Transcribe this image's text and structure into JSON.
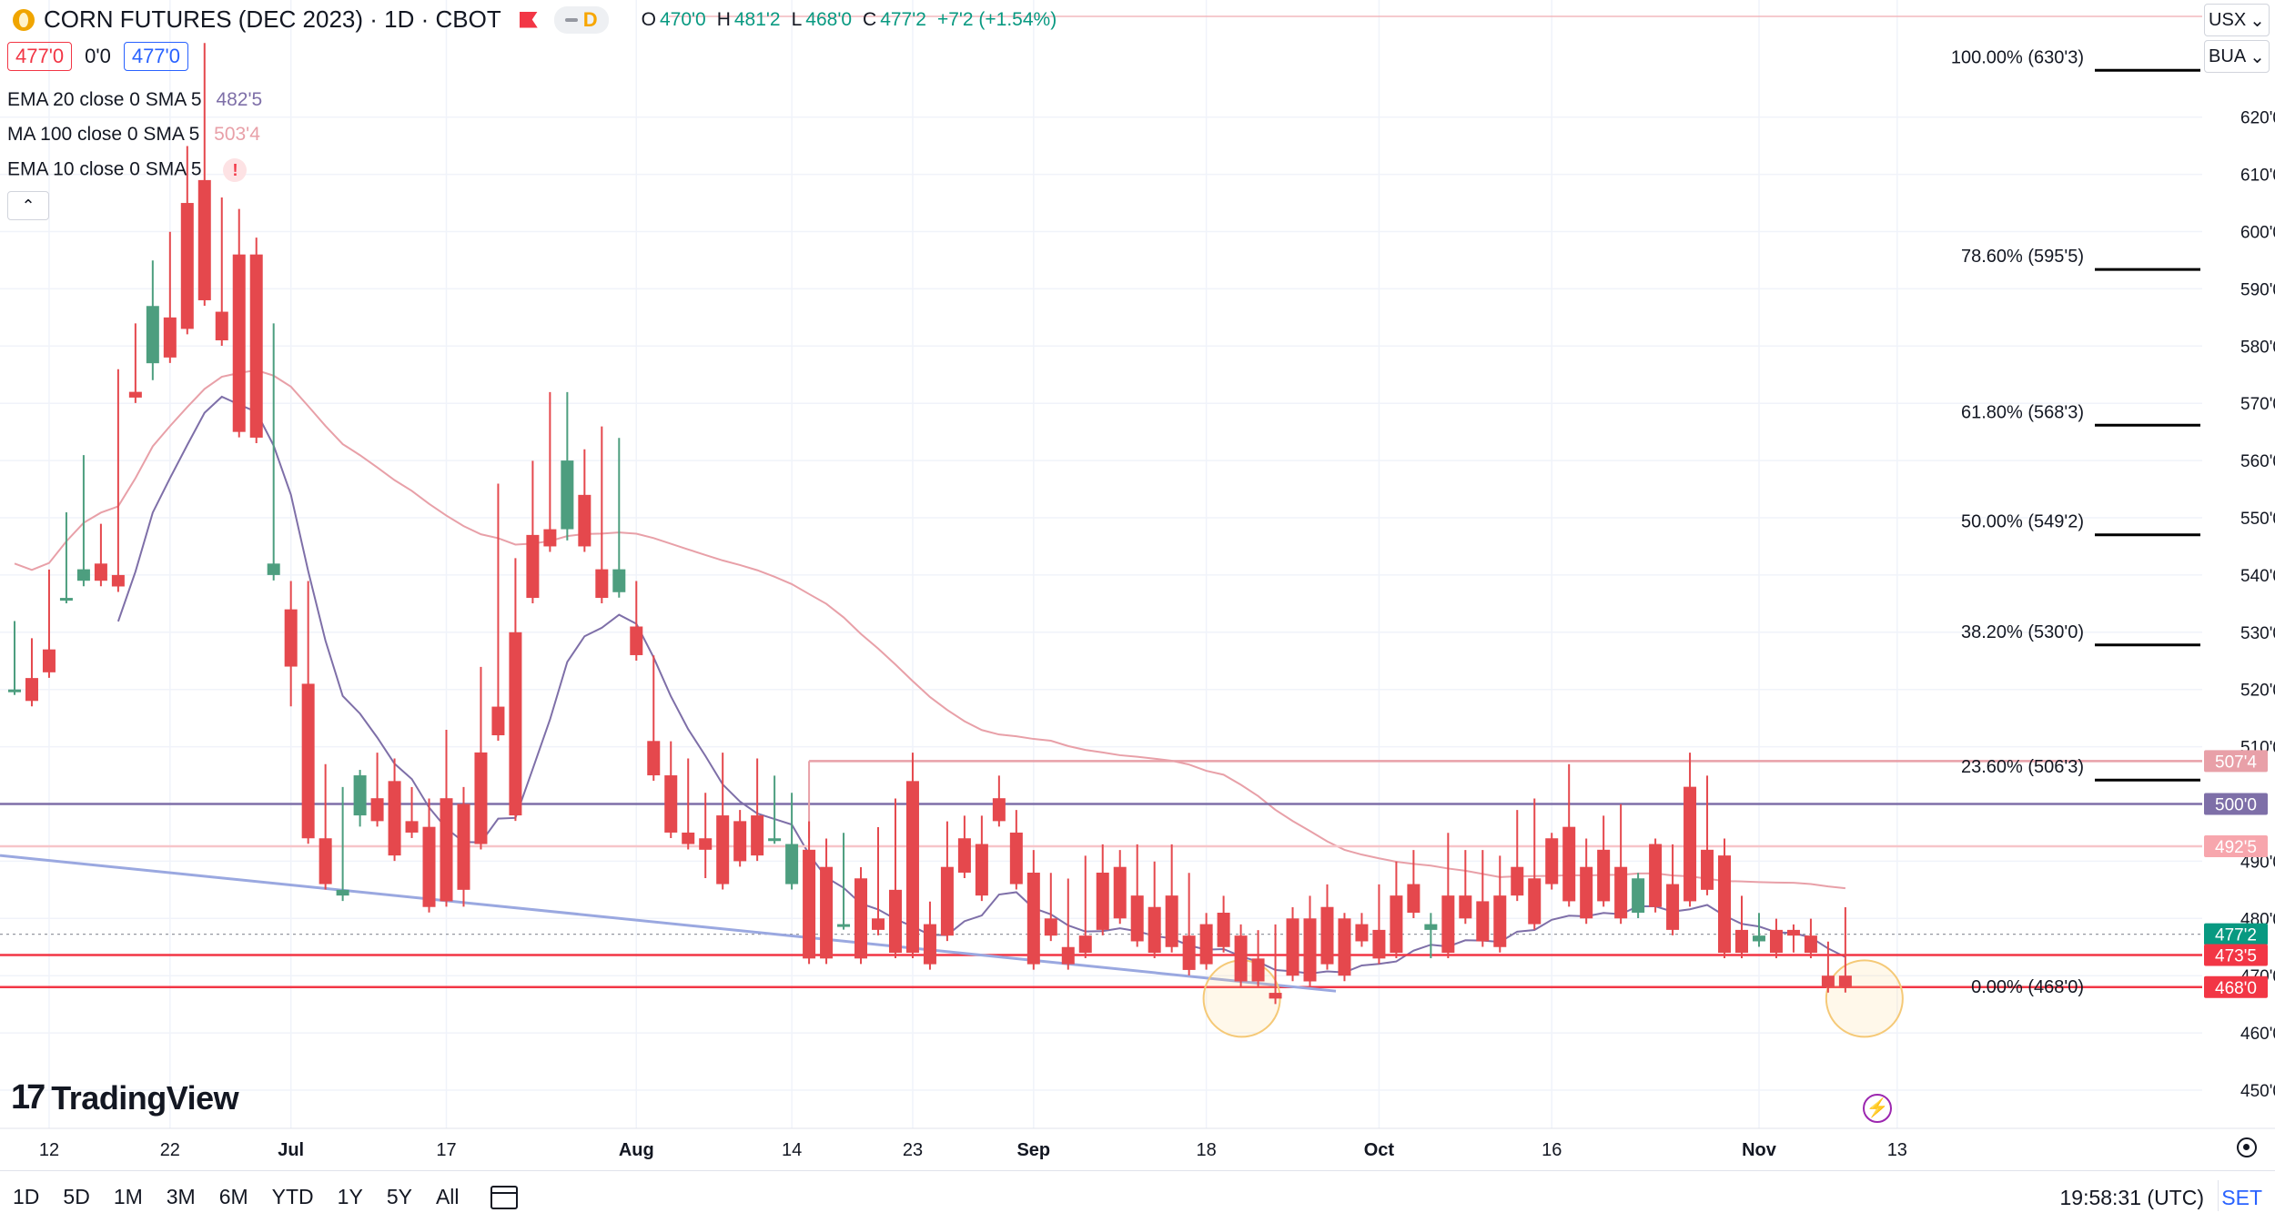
{
  "header": {
    "symbol_title": "CORN FUTURES (DEC 2023) · 1D · CBOT",
    "pill_letter": "D",
    "ohlc": [
      {
        "k": "O",
        "v": "470'0"
      },
      {
        "k": "H",
        "v": "481'2"
      },
      {
        "k": "L",
        "v": "468'0"
      },
      {
        "k": "C",
        "v": "477'2"
      },
      {
        "k": "",
        "v": "+7'2 (+1.54%)"
      }
    ],
    "sell_price": "477'0",
    "spread": "0'0",
    "buy_price": "477'0"
  },
  "indicators": [
    {
      "label": "EMA 20 close 0 SMA 5",
      "value": "482'5"
    },
    {
      "label": "MA 100 close 0 SMA 5",
      "value": "503'4"
    },
    {
      "label": "EMA 10 close 0 SMA 5",
      "value": ""
    }
  ],
  "collapse_icon": "chevron-up-icon",
  "right_selects": {
    "currency": "USX",
    "unit": "BUA"
  },
  "logo": "TradingView",
  "bottom": {
    "ranges": [
      "1D",
      "5D",
      "1M",
      "3M",
      "6M",
      "YTD",
      "1Y",
      "5Y",
      "All"
    ],
    "time": "19:58:31 (UTC)",
    "session": "SET"
  },
  "chart_data": {
    "type": "candlestick",
    "y_axis": {
      "min": 440,
      "max": 640,
      "ticks": [
        "450'0",
        "460'0",
        "470'0",
        "480'0",
        "490'0",
        "510'0",
        "520'0",
        "530'0",
        "540'0",
        "550'0",
        "560'0",
        "570'0",
        "580'0",
        "590'0",
        "600'0",
        "610'0",
        "620'0"
      ]
    },
    "x_ticks": [
      {
        "label": "12",
        "i": 2
      },
      {
        "label": "22",
        "i": 9
      },
      {
        "label": "Jul",
        "i": 16
      },
      {
        "label": "17",
        "i": 25
      },
      {
        "label": "Aug",
        "i": 36
      },
      {
        "label": "14",
        "i": 45
      },
      {
        "label": "23",
        "i": 52
      },
      {
        "label": "Sep",
        "i": 59
      },
      {
        "label": "18",
        "i": 69
      },
      {
        "label": "Oct",
        "i": 79
      },
      {
        "label": "16",
        "i": 89
      },
      {
        "label": "Nov",
        "i": 101
      },
      {
        "label": "13",
        "i": 109
      }
    ],
    "candles": [
      [
        520,
        531,
        528,
        520
      ],
      [
        522,
        528,
        524,
        518
      ],
      [
        527,
        540,
        538,
        523
      ],
      [
        536,
        550,
        540,
        536
      ],
      [
        539,
        560,
        551,
        541
      ],
      [
        542,
        545,
        548,
        539
      ],
      [
        540,
        575,
        553,
        538
      ],
      [
        572,
        583,
        573,
        571
      ],
      [
        577,
        594,
        575,
        587
      ],
      [
        585,
        589,
        599,
        578
      ],
      [
        605,
        614,
        592,
        583
      ],
      [
        609,
        632,
        615,
        588
      ],
      [
        586,
        605,
        598,
        581
      ],
      [
        596,
        603,
        590,
        565
      ],
      [
        596,
        598,
        591,
        564
      ],
      [
        540,
        577,
        583,
        542
      ],
      [
        534,
        538,
        518,
        524
      ],
      [
        521,
        538,
        510,
        494
      ],
      [
        494,
        506,
        493,
        486
      ],
      [
        484,
        491,
        502,
        485
      ],
      [
        498,
        504,
        497,
        505
      ],
      [
        501,
        508,
        499,
        497
      ],
      [
        504,
        507,
        494,
        491
      ],
      [
        497,
        502,
        496,
        495
      ],
      [
        496,
        500,
        499,
        482
      ],
      [
        501,
        512,
        499,
        483
      ],
      [
        500,
        502,
        483,
        485
      ],
      [
        509,
        523,
        505,
        493
      ],
      [
        517,
        555,
        532,
        512
      ],
      [
        530,
        542,
        508,
        498
      ],
      [
        547,
        559,
        549,
        536
      ],
      [
        548,
        571,
        547,
        545
      ],
      [
        548,
        571,
        547,
        560
      ],
      [
        554,
        557,
        561,
        545
      ],
      [
        541,
        552,
        565,
        536
      ],
      [
        537,
        549,
        563,
        541
      ],
      [
        531,
        538,
        530,
        526
      ],
      [
        511,
        525,
        517,
        505
      ],
      [
        505,
        510,
        501,
        495
      ],
      [
        495,
        507,
        497,
        493
      ],
      [
        494,
        501,
        488,
        492
      ],
      [
        498,
        508,
        499,
        486
      ],
      [
        497,
        498,
        497,
        490
      ],
      [
        498,
        507,
        496,
        491
      ],
      [
        494,
        504,
        496,
        494
      ],
      [
        486,
        501,
        497,
        493
      ],
      [
        492,
        496,
        493,
        473
      ],
      [
        489,
        493,
        479,
        473
      ],
      [
        479,
        482,
        494,
        479
      ],
      [
        487,
        488,
        478,
        473
      ],
      [
        480,
        495,
        485,
        478
      ],
      [
        485,
        500,
        489,
        474
      ],
      [
        504,
        508,
        504,
        474
      ],
      [
        479,
        482,
        479,
        472
      ],
      [
        489,
        495,
        496,
        477
      ],
      [
        494,
        497,
        491,
        488
      ],
      [
        493,
        496,
        497,
        484
      ],
      [
        501,
        504,
        498,
        497
      ],
      [
        495,
        498,
        489,
        486
      ],
      [
        488,
        491,
        488,
        472
      ],
      [
        480,
        487,
        486,
        477
      ],
      [
        475,
        486,
        480,
        472
      ],
      [
        477,
        490,
        480,
        474
      ],
      [
        488,
        492,
        488,
        478
      ],
      [
        489,
        491,
        489,
        480
      ],
      [
        484,
        492,
        492,
        476
      ],
      [
        482,
        485,
        489,
        474
      ],
      [
        484,
        492,
        488,
        475
      ],
      [
        477,
        487,
        484,
        471
      ],
      [
        479,
        480,
        474,
        472
      ],
      [
        481,
        483,
        479,
        475
      ],
      [
        477,
        478,
        478,
        469
      ],
      [
        473,
        477,
        474,
        469
      ],
      [
        467,
        471,
        478,
        466
      ],
      [
        480,
        481,
        479,
        470
      ],
      [
        480,
        483,
        475,
        469
      ],
      [
        482,
        484,
        485,
        472
      ],
      [
        480,
        480,
        475,
        470
      ],
      [
        479,
        480,
        480,
        476
      ],
      [
        478,
        485,
        482,
        473
      ],
      [
        484,
        488,
        489,
        474
      ],
      [
        486,
        490,
        491,
        481
      ],
      [
        478,
        480,
        474,
        479
      ],
      [
        484,
        490,
        494,
        474
      ],
      [
        484,
        489,
        491,
        480
      ],
      [
        483,
        490,
        491,
        476
      ],
      [
        484,
        486,
        490,
        475
      ],
      [
        489,
        498,
        489,
        484
      ],
      [
        487,
        500,
        486,
        479
      ],
      [
        494,
        494,
        492,
        486
      ],
      [
        496,
        506,
        484,
        483
      ],
      [
        489,
        493,
        488,
        480
      ],
      [
        492,
        497,
        495,
        483
      ],
      [
        489,
        499,
        496,
        480
      ],
      [
        481,
        482,
        483,
        487
      ],
      [
        493,
        490,
        493,
        482
      ],
      [
        486,
        492,
        486,
        478
      ],
      [
        503,
        508,
        506,
        483
      ],
      [
        492,
        504,
        491,
        485
      ],
      [
        491,
        493,
        484,
        474
      ],
      [
        478,
        482,
        483,
        474
      ],
      [
        476,
        480,
        476,
        477
      ],
      [
        478,
        479,
        478,
        474
      ],
      [
        478,
        475,
        476,
        477
      ],
      [
        477,
        479,
        476,
        474
      ],
      [
        470,
        473,
        475,
        468
      ],
      [
        470,
        481,
        477,
        468
      ]
    ],
    "series": [
      {
        "name": "EMA 20 close 0 SMA 5",
        "color": "#7e6fa8"
      },
      {
        "name": "MA 100 close 0 SMA 5",
        "color": "#e8a0a8"
      }
    ],
    "price_labels": [
      {
        "text": "507'4",
        "price": 507.5,
        "color": "#e8a0a8"
      },
      {
        "text": "500'0",
        "price": 500,
        "color": "#7e6fa8"
      },
      {
        "text": "492'5",
        "price": 492.6,
        "color": "#f7a6ad"
      },
      {
        "text": "477'2",
        "price": 477.25,
        "color": "#089981"
      },
      {
        "text": "473'5",
        "price": 473.6,
        "color": "#f23645"
      },
      {
        "text": "468'0",
        "price": 468,
        "color": "#f23645"
      }
    ],
    "fib_levels": [
      {
        "label": "100.00% (630'3)",
        "price": 630.4
      },
      {
        "label": "78.60% (595'5)",
        "price": 595.6
      },
      {
        "label": "61.80% (568'3)",
        "price": 568.4
      },
      {
        "label": "50.00% (549'2)",
        "price": 549.25
      },
      {
        "label": "38.20% (530'0)",
        "price": 530
      },
      {
        "label": "23.60% (506'3)",
        "price": 506.4
      },
      {
        "label": "0.00% (468'0)",
        "price": 468
      }
    ],
    "horizontal_lines": [
      {
        "price": 500,
        "color": "#7e6fa8"
      },
      {
        "price": 492.6,
        "color": "#f7c5c9"
      },
      {
        "price": 473.6,
        "color": "#f23645"
      },
      {
        "price": 468,
        "color": "#f23645"
      },
      {
        "price": 477.25,
        "color": "#9598a1"
      }
    ],
    "colors": {
      "up": "#4d9e7f",
      "down": "#e5484d"
    }
  }
}
